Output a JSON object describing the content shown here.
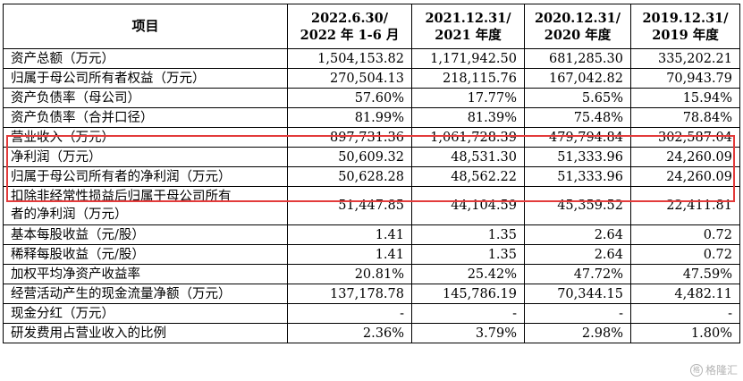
{
  "table": {
    "headers": [
      {
        "line1": "项目",
        "line2": ""
      },
      {
        "line1": "2022.6.30/",
        "line2": "2022 年 1-6 月"
      },
      {
        "line1": "2021.12.31/",
        "line2": "2021 年度"
      },
      {
        "line1": "2020.12.31/",
        "line2": "2020 年度"
      },
      {
        "line1": "2019.12.31/",
        "line2": "2019 年度"
      }
    ],
    "rows": [
      {
        "label_lines": [
          "资产总额（万元）"
        ],
        "values": [
          "1,504,153.82",
          "1,171,942.50",
          "681,285.30",
          "335,202.21"
        ]
      },
      {
        "label_lines": [
          "归属于母公司所有者权益（万元）"
        ],
        "values": [
          "270,504.13",
          "218,115.76",
          "167,042.82",
          "70,943.79"
        ]
      },
      {
        "label_lines": [
          "资产负债率（母公司）"
        ],
        "values": [
          "57.60%",
          "17.77%",
          "5.65%",
          "15.94%"
        ]
      },
      {
        "label_lines": [
          "资产负债率（合并口径）"
        ],
        "values": [
          "81.99%",
          "81.39%",
          "75.48%",
          "78.84%"
        ]
      },
      {
        "label_lines": [
          "营业收入（万元）"
        ],
        "values": [
          "897,731.36",
          "1,061,728.39",
          "479,794.84",
          "302,587.04"
        ]
      },
      {
        "label_lines": [
          "净利润（万元）"
        ],
        "values": [
          "50,609.32",
          "48,531.30",
          "51,333.96",
          "24,260.09"
        ]
      },
      {
        "label_lines": [
          "归属于母公司所有者的净利润（万元）"
        ],
        "values": [
          "50,628.28",
          "48,562.22",
          "51,333.96",
          "24,260.09"
        ]
      },
      {
        "label_lines": [
          "扣除非经常性损益后归属于母公司所有",
          "者的净利润（万元）"
        ],
        "values": [
          "51,447.85",
          "44,104.59",
          "45,359.52",
          "22,411.81"
        ]
      },
      {
        "label_lines": [
          "基本每股收益（元/股）"
        ],
        "values": [
          "1.41",
          "1.35",
          "2.64",
          "0.72"
        ]
      },
      {
        "label_lines": [
          "稀释每股收益（元/股）"
        ],
        "values": [
          "1.41",
          "1.35",
          "2.64",
          "0.72"
        ]
      },
      {
        "label_lines": [
          "加权平均净资产收益率"
        ],
        "values": [
          "20.81%",
          "25.42%",
          "47.72%",
          "47.59%"
        ]
      },
      {
        "label_lines": [
          "经营活动产生的现金流量净额（万元）"
        ],
        "values": [
          "137,178.78",
          "145,786.19",
          "70,344.15",
          "4,482.11"
        ]
      },
      {
        "label_lines": [
          "现金分红（万元）"
        ],
        "values": [
          "-",
          "-",
          "-",
          "-"
        ]
      },
      {
        "label_lines": [
          "研发费用占营业收入的比例"
        ],
        "values": [
          "2.36%",
          "3.79%",
          "2.98%",
          "1.80%"
        ]
      }
    ]
  },
  "highlight": {
    "color": "#e33b3b"
  },
  "watermark": {
    "icon_glyph": "格",
    "text": "格隆汇"
  }
}
